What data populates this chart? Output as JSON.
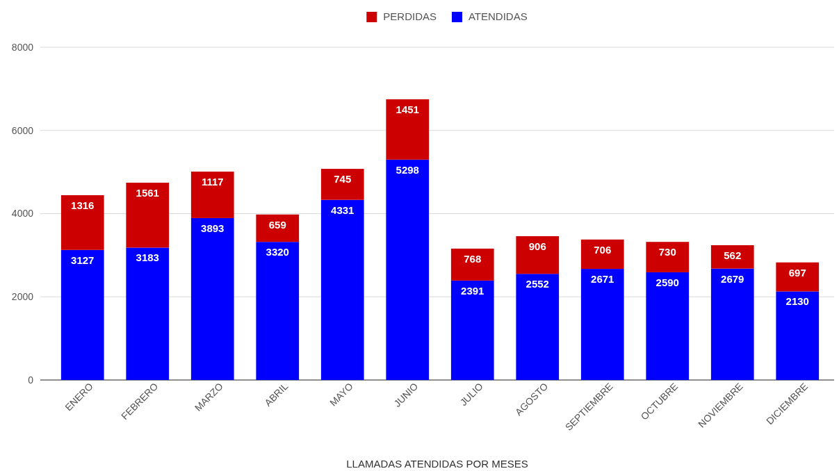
{
  "chart_data": {
    "type": "bar",
    "xlabel": "LLAMADAS ATENDIDAS POR MESES",
    "categories": [
      "ENERO",
      "FEBRERO",
      "MARZO",
      "ABRIL",
      "MAYO",
      "JUNIO",
      "JULIO",
      "AGOSTO",
      "SEPTIEMBRE",
      "OCTUBRE",
      "NOVIEMBRE",
      "DICIEMBRE"
    ],
    "series": [
      {
        "name": "ATENDIDAS",
        "color": "#0000ff",
        "values": [
          3127,
          3183,
          3893,
          3320,
          4331,
          5298,
          2391,
          2552,
          2671,
          2590,
          2679,
          2130
        ]
      },
      {
        "name": "PERDIDAS",
        "color": "#cc0000",
        "values": [
          1316,
          1561,
          1117,
          659,
          745,
          1451,
          768,
          906,
          706,
          730,
          562,
          697
        ]
      }
    ],
    "stacked": true,
    "ylim": [
      0,
      8000
    ],
    "yticks": [
      0,
      2000,
      4000,
      6000,
      8000
    ],
    "grid": "y",
    "legend": "top",
    "data_labels": true
  }
}
